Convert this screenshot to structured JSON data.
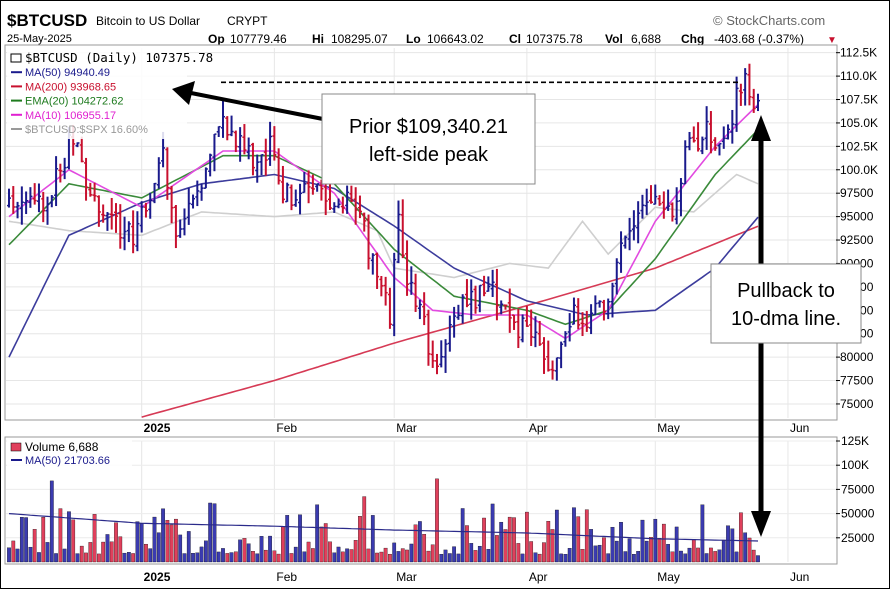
{
  "header": {
    "symbol": "$BTCUSD",
    "name": "Bitcoin to US Dollar",
    "exchange": "CRYPT",
    "date": "25-May-2025",
    "watermark": "© StockCharts.com",
    "op_label": "Op",
    "op": "107779.46",
    "hi_label": "Hi",
    "hi": "108295.07",
    "lo_label": "Lo",
    "lo": "106643.02",
    "cl_label": "Cl",
    "cl": "107375.78",
    "vol_label": "Vol",
    "vol": "6,688",
    "chg_label": "Chg",
    "chg": "-403.68 (-0.37%)",
    "chg_arrow": "▼"
  },
  "legend": [
    {
      "text": "$BTCUSD (Daily) 107375.78",
      "color": "#000000"
    },
    {
      "text": "MA(50) 94940.49",
      "color": "#1a1a8c"
    },
    {
      "text": "MA(200) 93968.65",
      "color": "#c8102e"
    },
    {
      "text": "EMA(20) 104272.62",
      "color": "#1e7b1e"
    },
    {
      "text": "MA(10) 106955.17",
      "color": "#e020d0"
    },
    {
      "text": "$BTCUSD:$SPX 16.60%",
      "color": "#999999"
    }
  ],
  "volume_legend": [
    {
      "text": "Volume 6,688",
      "color": "#000000"
    },
    {
      "text": "MA(50) 21703.66",
      "color": "#1a1a8c"
    }
  ],
  "annotations": {
    "peak": [
      "Prior $109,340.21",
      "left-side peak"
    ],
    "pullback": [
      "Pullback to",
      "10-dma line."
    ]
  },
  "colors": {
    "up": "#1a1a8c",
    "down": "#c8102e",
    "ma50": "#3c3c9c",
    "ma200": "#d63a55",
    "ema20": "#3a8a3a",
    "ma10": "#e24ae0",
    "ratio": "#cfcfcf"
  },
  "chart_data": {
    "type": "line",
    "x_tick_labels": [
      "2025",
      "Feb",
      "Mar",
      "Apr",
      "May",
      "Jun"
    ],
    "price_axis": {
      "ylim": [
        73500,
        113000
      ],
      "tick_labels": [
        "112.5K",
        "110.0K",
        "107.5K",
        "105.0K",
        "102.5K",
        "100.0K",
        "97500",
        "95000",
        "92500",
        "90000",
        "87500",
        "85000",
        "82500",
        "80000",
        "77500",
        "75000"
      ],
      "tick_values": [
        112500,
        110000,
        107500,
        105000,
        102500,
        100000,
        97500,
        95000,
        92500,
        90000,
        87500,
        85000,
        82500,
        80000,
        77500,
        75000
      ]
    },
    "volume_axis": {
      "ylim": [
        0,
        125000
      ],
      "tick_labels": [
        "125K",
        "100K",
        "75000",
        "50000",
        "25000"
      ],
      "tick_values": [
        125000,
        100000,
        75000,
        50000,
        25000
      ]
    },
    "close_anchors": [
      [
        "2024-12-01",
        97000
      ],
      [
        "2024-12-05",
        97500
      ],
      [
        "2024-12-10",
        96500
      ],
      [
        "2024-12-16",
        104000
      ],
      [
        "2024-12-18",
        100000
      ],
      [
        "2024-12-20",
        97000
      ],
      [
        "2024-12-30",
        92500
      ],
      [
        "2025-01-02",
        96500
      ],
      [
        "2025-01-06",
        102000
      ],
      [
        "2025-01-09",
        93500
      ],
      [
        "2025-01-14",
        96500
      ],
      [
        "2025-01-20",
        106000
      ],
      [
        "2025-01-22",
        104000
      ],
      [
        "2025-01-27",
        101000
      ],
      [
        "2025-01-31",
        102500
      ],
      [
        "2025-02-03",
        97500
      ],
      [
        "2025-02-10",
        97500
      ],
      [
        "2025-02-20",
        96500
      ],
      [
        "2025-02-25",
        88500
      ],
      [
        "2025-02-28",
        84500
      ],
      [
        "2025-03-02",
        94000
      ],
      [
        "2025-03-04",
        87000
      ],
      [
        "2025-03-07",
        86500
      ],
      [
        "2025-03-10",
        78500
      ],
      [
        "2025-03-14",
        84000
      ],
      [
        "2025-03-19",
        86000
      ],
      [
        "2025-03-24",
        87500
      ],
      [
        "2025-03-28",
        84000
      ],
      [
        "2025-04-02",
        82500
      ],
      [
        "2025-04-06",
        78000
      ],
      [
        "2025-04-09",
        82500
      ],
      [
        "2025-04-12",
        84500
      ],
      [
        "2025-04-16",
        84000
      ],
      [
        "2025-04-21",
        87500
      ],
      [
        "2025-04-25",
        94500
      ],
      [
        "2025-05-01",
        96500
      ],
      [
        "2025-05-05",
        94500
      ],
      [
        "2025-05-08",
        101500
      ],
      [
        "2025-05-12",
        104000
      ],
      [
        "2025-05-16",
        103500
      ],
      [
        "2025-05-19",
        105500
      ],
      [
        "2025-05-21",
        109500
      ],
      [
        "2025-05-22",
        111500
      ],
      [
        "2025-05-23",
        108000
      ],
      [
        "2025-05-25",
        107375.78
      ]
    ],
    "ma50_anchors": [
      [
        "2024-12-01",
        80000
      ],
      [
        "2024-12-15",
        93000
      ],
      [
        "2025-01-01",
        96500
      ],
      [
        "2025-01-15",
        98500
      ],
      [
        "2025-02-01",
        99500
      ],
      [
        "2025-02-15",
        98000
      ],
      [
        "2025-03-01",
        94000
      ],
      [
        "2025-03-15",
        89500
      ],
      [
        "2025-04-01",
        86000
      ],
      [
        "2025-04-15",
        84500
      ],
      [
        "2025-05-01",
        85000
      ],
      [
        "2025-05-15",
        89500
      ],
      [
        "2025-05-25",
        94940.49
      ]
    ],
    "ma200_anchors": [
      [
        "2025-01-01",
        73600
      ],
      [
        "2025-02-01",
        77500
      ],
      [
        "2025-03-01",
        81500
      ],
      [
        "2025-04-01",
        85500
      ],
      [
        "2025-05-01",
        89500
      ],
      [
        "2025-05-25",
        93968.65
      ]
    ],
    "ema20_anchors": [
      [
        "2024-12-01",
        92000
      ],
      [
        "2024-12-15",
        98500
      ],
      [
        "2025-01-01",
        97000
      ],
      [
        "2025-01-20",
        101500
      ],
      [
        "2025-02-01",
        101500
      ],
      [
        "2025-02-15",
        98500
      ],
      [
        "2025-03-01",
        91500
      ],
      [
        "2025-03-15",
        86500
      ],
      [
        "2025-04-01",
        85000
      ],
      [
        "2025-04-10",
        83500
      ],
      [
        "2025-04-20",
        85000
      ],
      [
        "2025-05-01",
        90500
      ],
      [
        "2025-05-15",
        99500
      ],
      [
        "2025-05-25",
        104272.62
      ]
    ],
    "ma10_anchors": [
      [
        "2024-12-01",
        95000
      ],
      [
        "2024-12-15",
        100000
      ],
      [
        "2025-01-01",
        96000
      ],
      [
        "2025-01-20",
        102000
      ],
      [
        "2025-02-01",
        102000
      ],
      [
        "2025-02-15",
        97500
      ],
      [
        "2025-03-01",
        88500
      ],
      [
        "2025-03-10",
        85000
      ],
      [
        "2025-03-20",
        84500
      ],
      [
        "2025-04-01",
        84500
      ],
      [
        "2025-04-10",
        82000
      ],
      [
        "2025-04-20",
        85000
      ],
      [
        "2025-05-01",
        94500
      ],
      [
        "2025-05-15",
        102500
      ],
      [
        "2025-05-25",
        106955.17
      ]
    ],
    "ratio_anchors": [
      [
        "2024-12-01",
        94500
      ],
      [
        "2024-12-15",
        93500
      ],
      [
        "2025-01-01",
        93000
      ],
      [
        "2025-01-15",
        95500
      ],
      [
        "2025-02-01",
        95000
      ],
      [
        "2025-02-15",
        95500
      ],
      [
        "2025-02-25",
        93500
      ],
      [
        "2025-03-01",
        89500
      ],
      [
        "2025-03-15",
        88500
      ],
      [
        "2025-03-28",
        90000
      ],
      [
        "2025-04-06",
        89500
      ],
      [
        "2025-04-14",
        94500
      ],
      [
        "2025-04-20",
        91000
      ],
      [
        "2025-05-01",
        96000
      ],
      [
        "2025-05-10",
        95500
      ],
      [
        "2025-05-20",
        99500
      ],
      [
        "2025-05-25",
        98500
      ]
    ],
    "volume_ma50_anchors": [
      [
        "2024-12-01",
        50000
      ],
      [
        "2025-01-01",
        40000
      ],
      [
        "2025-02-01",
        37000
      ],
      [
        "2025-03-01",
        33000
      ],
      [
        "2025-04-01",
        30000
      ],
      [
        "2025-05-01",
        24000
      ],
      [
        "2025-05-25",
        21703.66
      ]
    ],
    "prior_peak": {
      "date": "2025-01-20",
      "value": 109340.21
    }
  }
}
